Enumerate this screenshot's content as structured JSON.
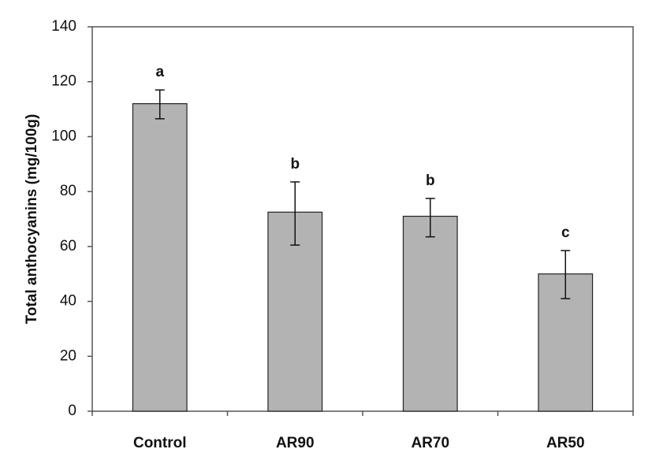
{
  "chart_data": {
    "type": "bar",
    "title": "",
    "xlabel": "",
    "ylabel": "Total anthocyanins  (mg/100g)",
    "ylim": [
      0,
      140
    ],
    "yticks": [
      0,
      20,
      40,
      60,
      80,
      100,
      120,
      140
    ],
    "grid": false,
    "legend": "none",
    "categories": [
      "Control",
      "AR90",
      "AR70",
      "AR50"
    ],
    "values": [
      112,
      72.5,
      71,
      50
    ],
    "error_low": [
      106.5,
      60.5,
      63.5,
      41
    ],
    "error_high": [
      117,
      83.5,
      77.5,
      58.5
    ],
    "significance_letters": [
      "a",
      "b",
      "b",
      "c"
    ],
    "colors": {
      "bar_fill": "#b3b3b3",
      "bar_stroke": "#222222",
      "axis": "#555555",
      "text": "#111111"
    }
  }
}
